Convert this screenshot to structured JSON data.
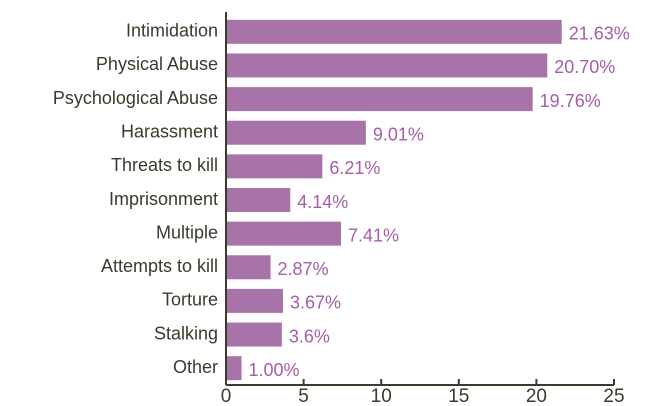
{
  "chart_data": {
    "type": "bar",
    "orientation": "horizontal",
    "categories": [
      "Intimidation",
      "Physical Abuse",
      "Psychological Abuse",
      "Harassment",
      "Threats to kill",
      "Imprisonment",
      "Multiple",
      "Attempts to kill",
      "Torture",
      "Stalking",
      "Other"
    ],
    "values": [
      21.63,
      20.7,
      19.76,
      9.01,
      6.21,
      4.14,
      7.41,
      2.87,
      3.67,
      3.6,
      1.0
    ],
    "value_labels": [
      "21.63%",
      "20.70%",
      "19.76%",
      "9.01%",
      "6.21%",
      "4.14%",
      "7.41%",
      "2.87%",
      "3.67%",
      "3.6%",
      "1.00%"
    ],
    "color": "#a873a8",
    "xlim": [
      0,
      25
    ],
    "xticks": [
      0,
      5,
      10,
      15,
      20,
      25
    ]
  }
}
